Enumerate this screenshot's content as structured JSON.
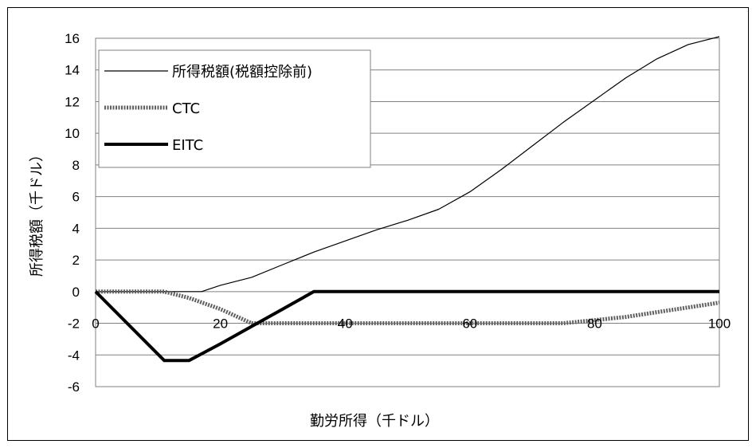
{
  "chart_data": {
    "type": "line",
    "xlabel": "勤労所得（千ドル）",
    "ylabel": "所得税額（千ドル）",
    "xlim": [
      0,
      100
    ],
    "ylim": [
      -6,
      16
    ],
    "xticks": [
      "0",
      "20",
      "40",
      "60",
      "80",
      "100"
    ],
    "yticks": [
      "16",
      "14",
      "12",
      "10",
      "8",
      "6",
      "4",
      "2",
      "0",
      "-2",
      "-4",
      "-6"
    ],
    "grid": "horizontal",
    "legend_position": "top-left",
    "series": [
      {
        "name": "所得税額(税額控除前)",
        "color": "#000000",
        "style": "thin",
        "points": [
          [
            0,
            0
          ],
          [
            17,
            0
          ],
          [
            20,
            0.4
          ],
          [
            25,
            0.9
          ],
          [
            30,
            1.7
          ],
          [
            35,
            2.5
          ],
          [
            40,
            3.2
          ],
          [
            45,
            3.9
          ],
          [
            50,
            4.5
          ],
          [
            55,
            5.2
          ],
          [
            60,
            6.3
          ],
          [
            65,
            7.7
          ],
          [
            70,
            9.2
          ],
          [
            75,
            10.7
          ],
          [
            80,
            12.1
          ],
          [
            85,
            13.5
          ],
          [
            90,
            14.7
          ],
          [
            95,
            15.6
          ],
          [
            100,
            16.1
          ]
        ]
      },
      {
        "name": "CTC",
        "color": "#606060",
        "style": "dashed-thick",
        "points": [
          [
            0,
            0
          ],
          [
            11,
            0
          ],
          [
            15,
            -0.4
          ],
          [
            20,
            -1.1
          ],
          [
            25,
            -2.0
          ],
          [
            75,
            -2.0
          ],
          [
            80,
            -1.8
          ],
          [
            85,
            -1.6
          ],
          [
            90,
            -1.3
          ],
          [
            95,
            -1.0
          ],
          [
            100,
            -0.7
          ]
        ]
      },
      {
        "name": "EITC",
        "color": "#000000",
        "style": "thick",
        "points": [
          [
            0,
            0
          ],
          [
            11,
            -4.35
          ],
          [
            15,
            -4.35
          ],
          [
            20,
            -3.3
          ],
          [
            25,
            -2.2
          ],
          [
            30,
            -1.1
          ],
          [
            35,
            0
          ],
          [
            100,
            0
          ]
        ]
      }
    ]
  }
}
